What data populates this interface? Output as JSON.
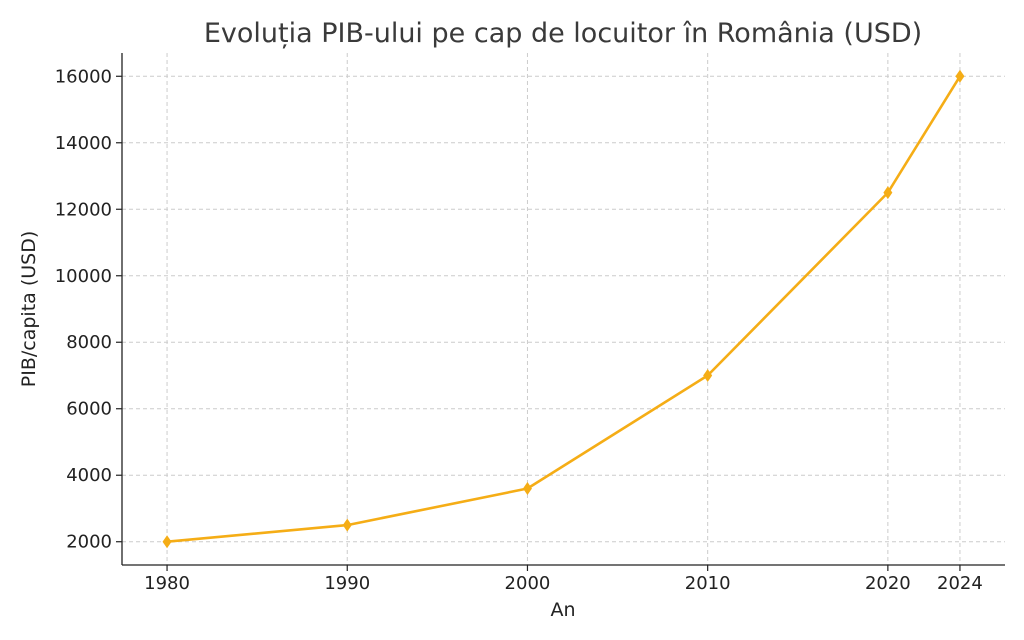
{
  "chart_data": {
    "type": "line",
    "title": "Evoluția PIB-ului pe cap de locuitor în România (USD)",
    "xlabel": "An",
    "ylabel": "PIB/capita (USD)",
    "x": [
      1980,
      1990,
      2000,
      2010,
      2020,
      2024
    ],
    "xticks": [
      1980,
      1990,
      2000,
      2010,
      2020,
      2024
    ],
    "yticks": [
      2000,
      4000,
      6000,
      8000,
      10000,
      12000,
      14000,
      16000
    ],
    "xlim": [
      1977.5,
      2026.5
    ],
    "ylim": [
      1300,
      16700
    ],
    "grid": true,
    "series": [
      {
        "values": [
          2000,
          2500,
          3600,
          7000,
          12500,
          16000
        ],
        "color": "#f5ad16",
        "marker": "diamond"
      }
    ]
  }
}
